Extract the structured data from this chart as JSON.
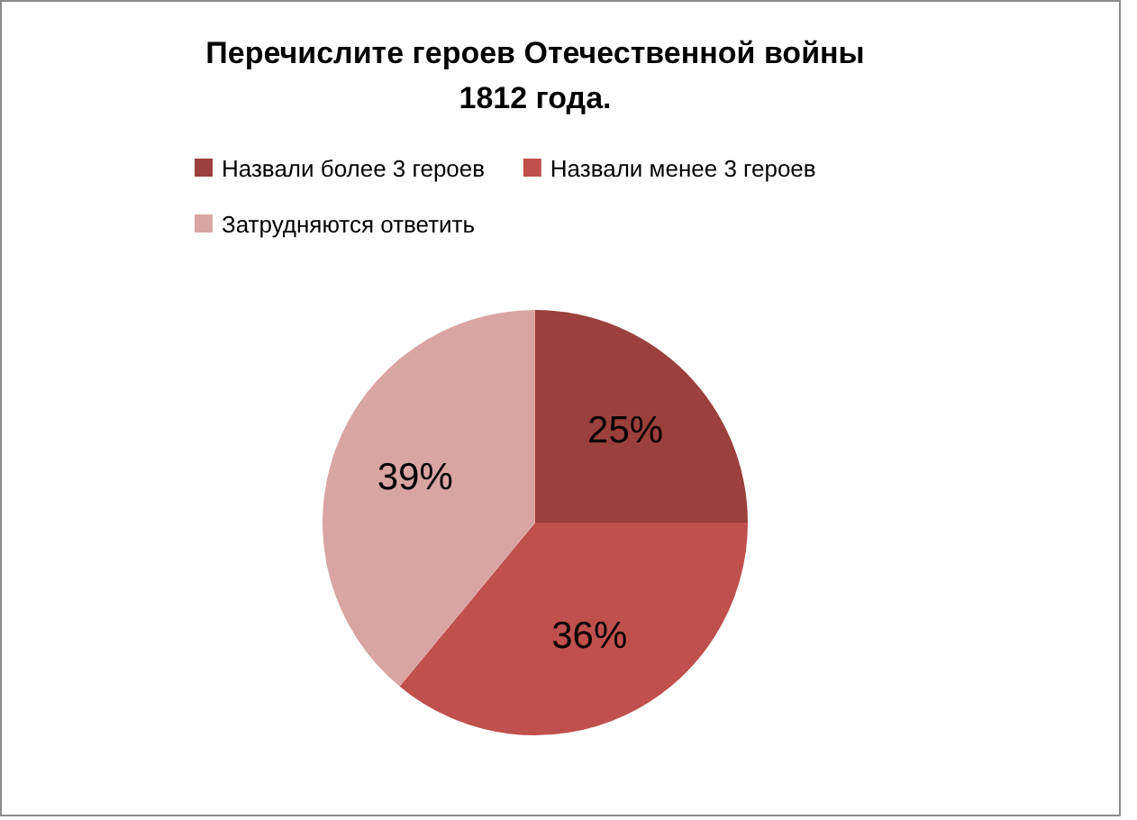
{
  "chart_data": {
    "type": "pie",
    "title": "Перечислите героев Отечественной войны 1812 года.",
    "categories": [
      "Назвали более 3 героев",
      "Назвали менее 3 героев",
      "Затрудняются ответить"
    ],
    "values": [
      25,
      36,
      39
    ],
    "colors": [
      "#9b403c",
      "#c0504d",
      "#d9a5a3"
    ],
    "value_labels": [
      "25%",
      "36%",
      "39%"
    ],
    "legend": "top"
  }
}
